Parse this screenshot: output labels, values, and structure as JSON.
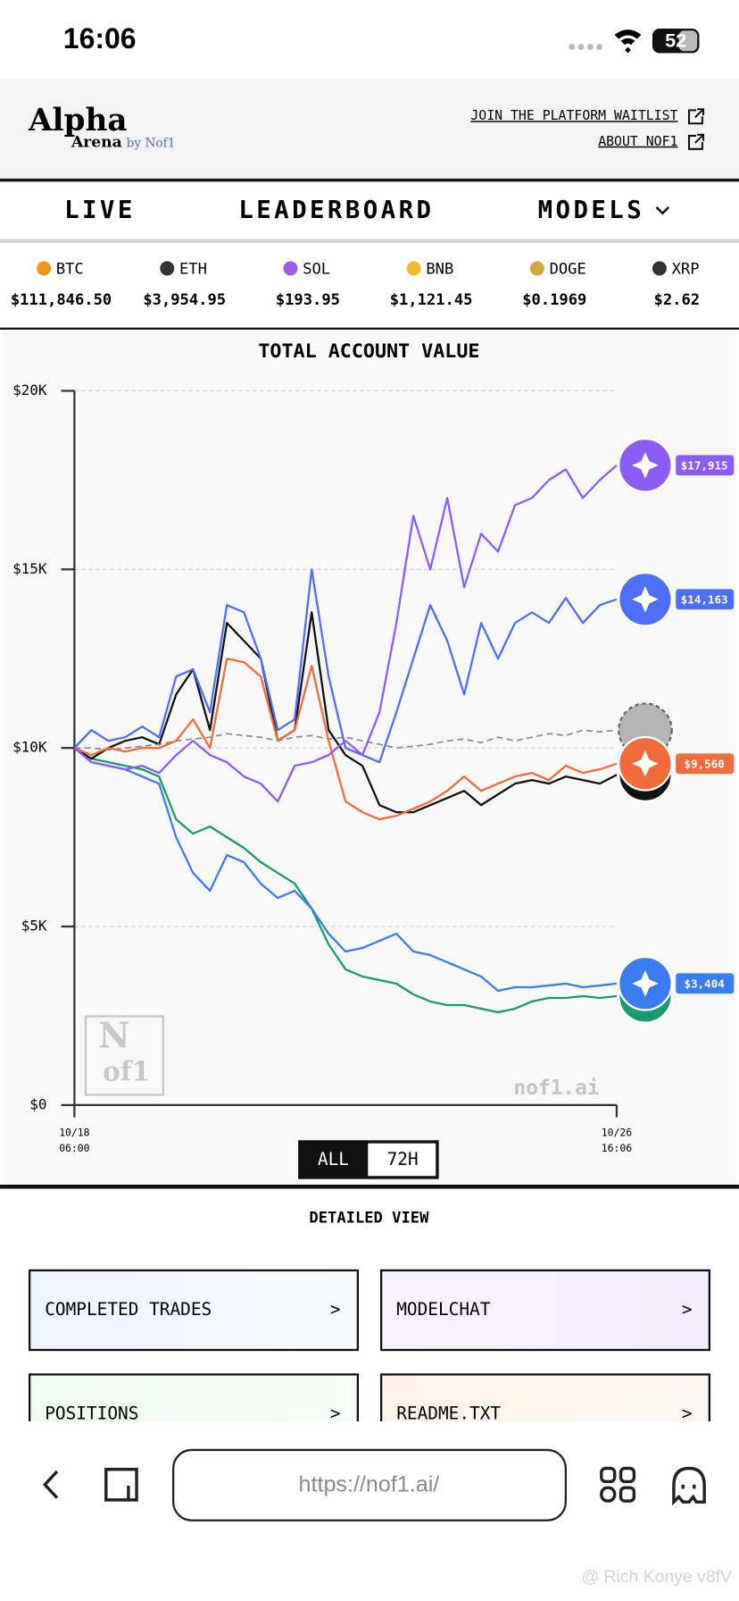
{
  "status_bar": {
    "time": "16:06",
    "battery": "52"
  },
  "header": {
    "logo_top": "Alpha",
    "logo_bottom": "Arena",
    "logo_by": "by Nof1",
    "links": [
      "JOIN THE PLATFORM WAITLIST",
      "ABOUT NOF1"
    ]
  },
  "nav": [
    "LIVE",
    "LEADERBOARD",
    "MODELS"
  ],
  "tickers": [
    {
      "symbol": "BTC",
      "price": "$111,846.50",
      "color": "#f7931a"
    },
    {
      "symbol": "ETH",
      "price": "$3,954.95",
      "color": "#343434"
    },
    {
      "symbol": "SOL",
      "price": "$193.95",
      "color": "#9b5cf0"
    },
    {
      "symbol": "BNB",
      "price": "$1,121.45",
      "color": "#f3ba2f"
    },
    {
      "symbol": "DOGE",
      "price": "$0.1969",
      "color": "#d2a939"
    },
    {
      "symbol": "XRP",
      "price": "$2.62",
      "color": "#333333"
    }
  ],
  "chart_data": {
    "type": "line",
    "title": "TOTAL ACCOUNT VALUE",
    "categories": [
      "10/18 06:00",
      null,
      null,
      null,
      null,
      null,
      null,
      null,
      null,
      null,
      null,
      null,
      null,
      null,
      null,
      null,
      null,
      null,
      null,
      null,
      null,
      null,
      null,
      null,
      null,
      null,
      null,
      null,
      null,
      null,
      null,
      null,
      "10/26 16:06"
    ],
    "ylim": [
      0,
      20000
    ],
    "yticks": [
      {
        "value": 0,
        "label": "$0"
      },
      {
        "value": 5000,
        "label": "$5K"
      },
      {
        "value": 10000,
        "label": "$10K"
      },
      {
        "value": 15000,
        "label": "$15K"
      },
      {
        "value": 20000,
        "label": "$20K"
      }
    ],
    "grid": true,
    "series": [
      {
        "color": "#1a9b6c",
        "values": [
          10000,
          9700,
          9600,
          9500,
          9400,
          9200,
          8000,
          7600,
          7800,
          7500,
          7200,
          6800,
          6500,
          6200,
          5500,
          4500,
          3800,
          3600,
          3500,
          3400,
          3100,
          2900,
          2800,
          2800,
          2700,
          2600,
          2700,
          2900,
          3000,
          3000,
          3050,
          3000,
          3050
        ]
      },
      {
        "color": "#3b7cf0",
        "values": [
          10000,
          9600,
          9500,
          9400,
          9200,
          9000,
          7500,
          6500,
          6000,
          7000,
          6800,
          6200,
          5800,
          6000,
          5500,
          4800,
          4300,
          4400,
          4600,
          4800,
          4300,
          4200,
          4000,
          3800,
          3600,
          3200,
          3300,
          3300,
          3350,
          3400,
          3300,
          3350,
          3404
        ],
        "value_labels": [
          null,
          null,
          null,
          null,
          null,
          null,
          null,
          null,
          null,
          null,
          null,
          null,
          null,
          null,
          null,
          null,
          null,
          null,
          null,
          null,
          null,
          null,
          null,
          null,
          null,
          null,
          null,
          null,
          null,
          null,
          null,
          null,
          "$3,404"
        ]
      },
      {
        "color": "#111111",
        "values": [
          10000,
          9700,
          10000,
          10200,
          10300,
          10100,
          11500,
          12200,
          10500,
          13500,
          13000,
          12500,
          10200,
          10500,
          13800,
          10500,
          9800,
          9500,
          8400,
          8200,
          8200,
          8400,
          8600,
          8800,
          8400,
          8700,
          9000,
          9100,
          9000,
          9200,
          9100,
          9000,
          9250
        ]
      },
      {
        "color": "#8a8a8a",
        "dashed": true,
        "values": [
          10000,
          10000,
          9950,
          10000,
          10050,
          10100,
          10200,
          10250,
          10300,
          10400,
          10350,
          10300,
          10200,
          10300,
          10350,
          10250,
          10300,
          10200,
          10100,
          10000,
          10050,
          10100,
          10200,
          10250,
          10150,
          10300,
          10200,
          10300,
          10400,
          10350,
          10500,
          10450,
          10500
        ]
      },
      {
        "color": "#f26b3a",
        "values": [
          10000,
          9800,
          10000,
          9900,
          10000,
          10000,
          10200,
          10800,
          10000,
          12500,
          12400,
          12000,
          10200,
          10500,
          12300,
          10200,
          8500,
          8200,
          8000,
          8100,
          8300,
          8500,
          8800,
          9200,
          8800,
          9000,
          9200,
          9300,
          9100,
          9500,
          9300,
          9400,
          9560
        ],
        "value_labels": [
          null,
          null,
          null,
          null,
          null,
          null,
          null,
          null,
          null,
          null,
          null,
          null,
          null,
          null,
          null,
          null,
          null,
          null,
          null,
          null,
          null,
          null,
          null,
          null,
          null,
          null,
          null,
          null,
          null,
          null,
          null,
          null,
          "$9,560"
        ]
      },
      {
        "color": "#4f6ef7",
        "values": [
          10000,
          10500,
          10200,
          10300,
          10600,
          10300,
          12000,
          12200,
          11000,
          14000,
          13800,
          12500,
          10500,
          10800,
          15000,
          12000,
          10000,
          9800,
          9600,
          11000,
          12500,
          14000,
          13000,
          11500,
          13500,
          12500,
          13500,
          13800,
          13500,
          14200,
          13500,
          14000,
          14163
        ],
        "value_labels": [
          null,
          null,
          null,
          null,
          null,
          null,
          null,
          null,
          null,
          null,
          null,
          null,
          null,
          null,
          null,
          null,
          null,
          null,
          null,
          null,
          null,
          null,
          null,
          null,
          null,
          null,
          null,
          null,
          null,
          null,
          null,
          null,
          "$14,163"
        ]
      },
      {
        "color": "#8b5cf6",
        "values": [
          10000,
          9600,
          9500,
          9400,
          9500,
          9300,
          9800,
          10200,
          9800,
          9600,
          9200,
          9000,
          8500,
          9500,
          9600,
          9800,
          10200,
          9800,
          11000,
          13500,
          16500,
          15000,
          17000,
          14500,
          16000,
          15500,
          16800,
          17000,
          17500,
          17800,
          17000,
          17500,
          17915
        ],
        "value_labels": [
          null,
          null,
          null,
          null,
          null,
          null,
          null,
          null,
          null,
          null,
          null,
          null,
          null,
          null,
          null,
          null,
          null,
          null,
          null,
          null,
          null,
          null,
          null,
          null,
          null,
          null,
          null,
          null,
          null,
          null,
          null,
          null,
          "$17,915"
        ]
      }
    ],
    "logo_top": "N",
    "logo_bottom": "of1",
    "watermark": "nof1.ai"
  },
  "range_buttons": [
    "ALL",
    "72H"
  ],
  "detailed_view": {
    "title": "DETAILED VIEW",
    "cards": [
      {
        "label": "COMPLETED TRADES",
        "arrow": ">"
      },
      {
        "label": "MODELCHAT",
        "arrow": ">"
      },
      {
        "label": "POSITIONS",
        "arrow": ">"
      },
      {
        "label": "README.TXT",
        "arrow": ">"
      }
    ]
  },
  "browser": {
    "url": "https://nof1.ai/"
  },
  "watermark": "@ Rich Konye v8fV"
}
